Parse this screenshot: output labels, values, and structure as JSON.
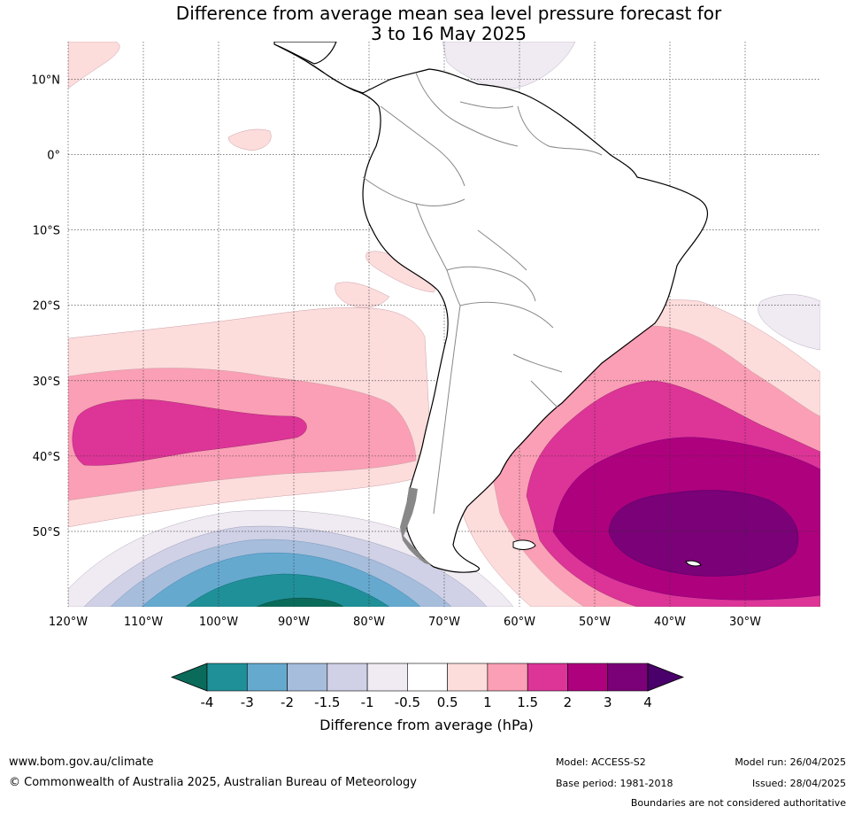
{
  "title": {
    "line1": "Difference from average mean sea level pressure forecast for",
    "line2": "3 to 16 May 2025"
  },
  "map": {
    "lat_labels": [
      "10°N",
      "0°",
      "10°S",
      "20°S",
      "30°S",
      "40°S",
      "50°S"
    ],
    "lon_labels": [
      "120°W",
      "110°W",
      "100°W",
      "90°W",
      "80°W",
      "70°W",
      "60°W",
      "50°W",
      "40°W",
      "30°W"
    ],
    "lon_extent": [
      -120,
      -20
    ],
    "lat_extent": [
      -60,
      15
    ]
  },
  "colorbar": {
    "ticks": [
      "-4",
      "-3",
      "-2",
      "-1.5",
      "-1",
      "-0.5",
      "0.5",
      "1",
      "1.5",
      "2",
      "3",
      "4"
    ],
    "colors": [
      "#0b6b5a",
      "#1f9098",
      "#66a9cf",
      "#a6bddb",
      "#d0d1e6",
      "#f0eaf2",
      "#ffffff",
      "#fddcdc",
      "#fa9fb5",
      "#dd3497",
      "#ae017e",
      "#7a0177",
      "#49006a"
    ],
    "label": "Difference from average (hPa)"
  },
  "footer": {
    "website": "www.bom.gov.au/climate",
    "copyright": "© Commonwealth of Australia 2025, Australian Bureau of Meteorology",
    "model": "Model: ACCESS-S2",
    "base_period": "Base period: 1981-2018",
    "model_run": "Model run: 26/04/2025",
    "issued": "Issued: 28/04/2025",
    "disclaimer": "Boundaries are not considered authoritative"
  }
}
